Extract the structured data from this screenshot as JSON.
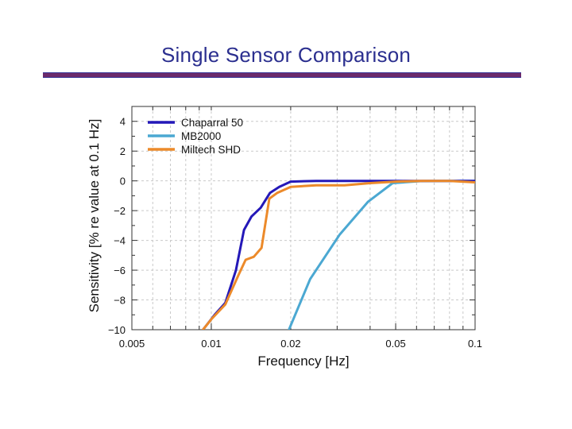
{
  "slide": {
    "title": "Single Sensor Comparison"
  },
  "chart_data": {
    "type": "line",
    "title": "",
    "xlabel": "Frequency [Hz]",
    "ylabel": "Sensitivity [% re value at 0.1 Hz]",
    "xscale": "log",
    "xlim": [
      0.005,
      0.1
    ],
    "ylim": [
      -10,
      5
    ],
    "xticks": [
      0.005,
      0.01,
      0.02,
      0.05,
      0.1
    ],
    "xtick_labels": [
      "0.005",
      "0.01",
      "0.02",
      "0.05",
      "0.1"
    ],
    "yticks": [
      4,
      2,
      0,
      -2,
      -4,
      -6,
      -8,
      -10
    ],
    "ytick_labels": [
      "4",
      "2",
      "0",
      "−2",
      "−4",
      "−6",
      "−8",
      "−10"
    ],
    "grid": true,
    "legend_position": "top-left",
    "series": [
      {
        "name": "Chaparral 50",
        "color": "#2418b8",
        "x": [
          0.0093,
          0.0103,
          0.0113,
          0.0124,
          0.0133,
          0.0142,
          0.0154,
          0.0167,
          0.0181,
          0.02,
          0.025,
          0.032,
          0.04,
          0.05,
          0.063,
          0.08,
          0.1
        ],
        "y": [
          -10,
          -9.0,
          -8.2,
          -6.0,
          -3.3,
          -2.4,
          -1.8,
          -0.8,
          -0.4,
          -0.05,
          0,
          0,
          0,
          0,
          0,
          0,
          0
        ]
      },
      {
        "name": "MB2000",
        "color": "#4ba8d2",
        "x": [
          0.0197,
          0.0237,
          0.0307,
          0.0393,
          0.0487,
          0.062,
          0.08,
          0.1
        ],
        "y": [
          -10,
          -6.6,
          -3.6,
          -1.4,
          -0.15,
          -0.02,
          0,
          0
        ]
      },
      {
        "name": "Miltech SHD",
        "color": "#ec8a2a",
        "x": [
          0.0093,
          0.01,
          0.0113,
          0.0127,
          0.0135,
          0.0145,
          0.0155,
          0.0166,
          0.0178,
          0.02,
          0.025,
          0.032,
          0.04,
          0.05,
          0.063,
          0.08,
          0.1
        ],
        "y": [
          -10,
          -9.3,
          -8.3,
          -6.3,
          -5.3,
          -5.1,
          -4.5,
          -1.2,
          -0.8,
          -0.4,
          -0.3,
          -0.3,
          -0.15,
          -0.05,
          0,
          0,
          -0.1
        ]
      }
    ]
  }
}
